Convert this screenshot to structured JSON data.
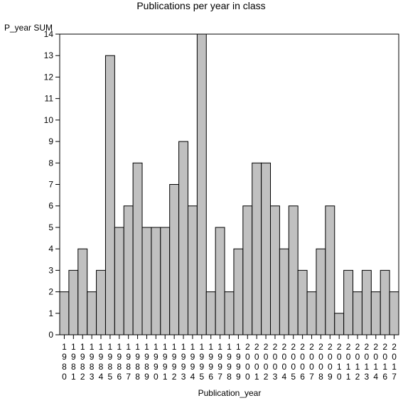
{
  "chart_data": {
    "type": "bar",
    "title": "Publications per year in class",
    "xlabel": "Publication_year",
    "ylabel": "P_year SUM",
    "ylim": [
      0,
      14
    ],
    "yticks": [
      0,
      1,
      2,
      3,
      4,
      5,
      6,
      7,
      8,
      9,
      10,
      11,
      12,
      13,
      14
    ],
    "grid": false,
    "bar_color": "#c0c0c0",
    "categories": [
      "1980",
      "1981",
      "1982",
      "1983",
      "1984",
      "1985",
      "1986",
      "1987",
      "1988",
      "1989",
      "1990",
      "1991",
      "1992",
      "1993",
      "1994",
      "1995",
      "1996",
      "1997",
      "1998",
      "1999",
      "2000",
      "2001",
      "2002",
      "2003",
      "2004",
      "2005",
      "2006",
      "2007",
      "2008",
      "2009",
      "2010",
      "2011",
      "2012",
      "2013",
      "2014",
      "2016",
      "2017"
    ],
    "values": [
      2,
      3,
      4,
      2,
      3,
      13,
      5,
      6,
      8,
      5,
      5,
      5,
      7,
      9,
      6,
      14,
      2,
      5,
      2,
      4,
      6,
      8,
      8,
      6,
      4,
      6,
      3,
      2,
      4,
      6,
      1,
      3,
      2,
      3,
      2,
      3,
      2
    ]
  }
}
